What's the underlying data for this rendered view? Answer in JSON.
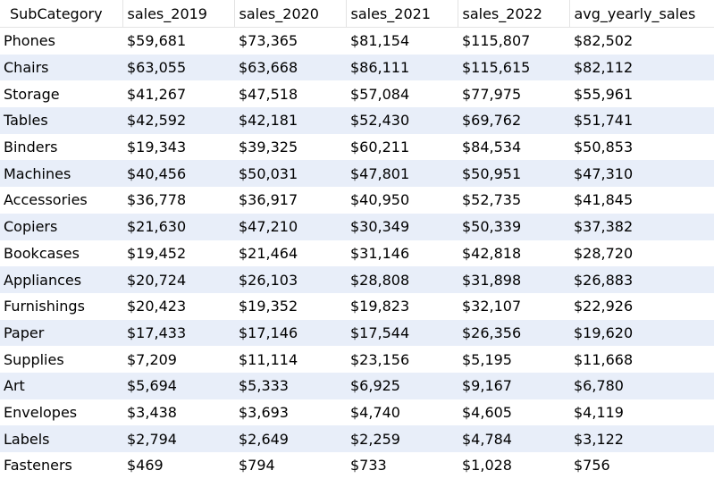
{
  "table": {
    "columns": [
      "SubCategory",
      "sales_2019",
      "sales_2020",
      "sales_2021",
      "sales_2022",
      "avg_yearly_sales"
    ],
    "rows": [
      [
        "Phones",
        "$59,681",
        "$73,365",
        "$81,154",
        "$115,807",
        "$82,502"
      ],
      [
        "Chairs",
        "$63,055",
        "$63,668",
        "$86,111",
        "$115,615",
        "$82,112"
      ],
      [
        "Storage",
        "$41,267",
        "$47,518",
        "$57,084",
        "$77,975",
        "$55,961"
      ],
      [
        "Tables",
        "$42,592",
        "$42,181",
        "$52,430",
        "$69,762",
        "$51,741"
      ],
      [
        "Binders",
        "$19,343",
        "$39,325",
        "$60,211",
        "$84,534",
        "$50,853"
      ],
      [
        "Machines",
        "$40,456",
        "$50,031",
        "$47,801",
        "$50,951",
        "$47,310"
      ],
      [
        "Accessories",
        "$36,778",
        "$36,917",
        "$40,950",
        "$52,735",
        "$41,845"
      ],
      [
        "Copiers",
        "$21,630",
        "$47,210",
        "$30,349",
        "$50,339",
        "$37,382"
      ],
      [
        "Bookcases",
        "$19,452",
        "$21,464",
        "$31,146",
        "$42,818",
        "$28,720"
      ],
      [
        "Appliances",
        "$20,724",
        "$26,103",
        "$28,808",
        "$31,898",
        "$26,883"
      ],
      [
        "Furnishings",
        "$20,423",
        "$19,352",
        "$19,823",
        "$32,107",
        "$22,926"
      ],
      [
        "Paper",
        "$17,433",
        "$17,146",
        "$17,544",
        "$26,356",
        "$19,620"
      ],
      [
        "Supplies",
        "$7,209",
        "$11,114",
        "$23,156",
        "$5,195",
        "$11,668"
      ],
      [
        "Art",
        "$5,694",
        "$5,333",
        "$6,925",
        "$9,167",
        "$6,780"
      ],
      [
        "Envelopes",
        "$3,438",
        "$3,693",
        "$4,740",
        "$4,605",
        "$4,119"
      ],
      [
        "Labels",
        "$2,794",
        "$2,649",
        "$2,259",
        "$4,784",
        "$3,122"
      ],
      [
        "Fasteners",
        "$469",
        "$794",
        "$733",
        "$1,028",
        "$756"
      ]
    ]
  }
}
